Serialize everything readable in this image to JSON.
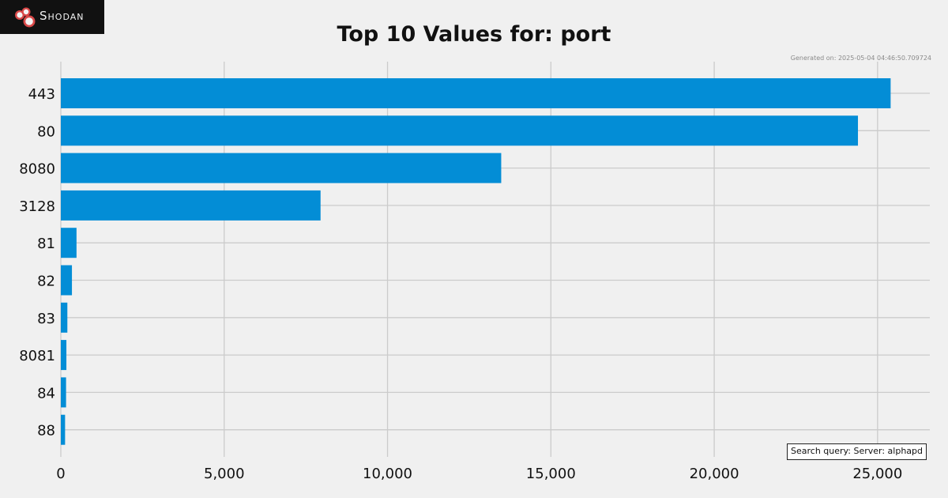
{
  "brand": {
    "name": "Shodan",
    "logo_color": "#d94848"
  },
  "chart_data": {
    "type": "bar",
    "orientation": "horizontal",
    "title": "Top 10 Values for: port",
    "generated": "Generated on: 2025-05-04 04:46:50.709724",
    "query": "Search query: Server: alphapd",
    "categories": [
      "443",
      "80",
      "8080",
      "3128",
      "81",
      "82",
      "83",
      "8081",
      "84",
      "88"
    ],
    "values": [
      25400,
      24400,
      13480,
      7950,
      480,
      340,
      200,
      170,
      160,
      130
    ],
    "xticks": [
      0,
      5000,
      10000,
      15000,
      20000,
      25000
    ],
    "xtick_labels": [
      "0",
      "5,000",
      "10,000",
      "15,000",
      "20,000",
      "25,000"
    ],
    "xlim": [
      0,
      26600
    ],
    "grid": true,
    "bar_color": "#038dd6",
    "grid_color": "#cbcbcb",
    "background": "#f0f0f0"
  }
}
